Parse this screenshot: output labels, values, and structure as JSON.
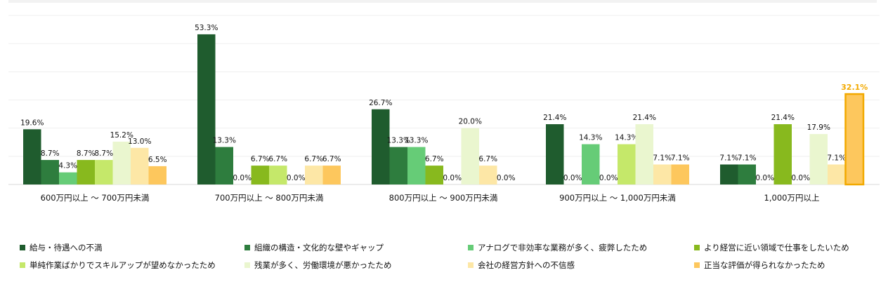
{
  "chart_data": {
    "type": "bar",
    "categories": [
      "600万円以上 ～ 700万円未満",
      "700万円以上 ～ 800万円未満",
      "800万円以上 ～ 900万円未満",
      "900万円以上 ～ 1,000万円未満",
      "1,000万円以上"
    ],
    "series": [
      {
        "name": "給与・待遇への不満",
        "color": "#1f5c2e",
        "values": [
          19.6,
          53.3,
          26.7,
          21.4,
          7.1
        ]
      },
      {
        "name": "組織の構造・文化的な壁やギャップ",
        "color": "#2e7d3e",
        "values": [
          8.7,
          13.3,
          13.3,
          0.0,
          7.1
        ]
      },
      {
        "name": "アナログで非効率な業務が多く、疲弊したため",
        "color": "#66cc77",
        "values": [
          4.3,
          0.0,
          13.3,
          14.3,
          0.0
        ]
      },
      {
        "name": "より経営に近い領域で仕事をしたいため",
        "color": "#88b91e",
        "values": [
          8.7,
          6.7,
          6.7,
          0.0,
          21.4
        ]
      },
      {
        "name": "単純作業ばかりでスキルアップが望めなかったため",
        "color": "#c5e86a",
        "values": [
          8.7,
          6.7,
          0.0,
          14.3,
          0.0
        ]
      },
      {
        "name": "残業が多く、労働環境が悪かったため",
        "color": "#eaf6cf",
        "values": [
          15.2,
          0.0,
          20.0,
          21.4,
          17.9
        ]
      },
      {
        "name": "会社の経営方針への不信感",
        "color": "#fde7a6",
        "values": [
          13.0,
          6.7,
          6.7,
          7.1,
          7.1
        ]
      },
      {
        "name": "正当な評価が得られなかったため",
        "color": "#fdc75d",
        "values": [
          6.5,
          6.7,
          0.0,
          7.1,
          32.1
        ]
      }
    ],
    "value_labels": [
      [
        "19.6%",
        "53.3%",
        "26.7%",
        "21.4%",
        "7.1%"
      ],
      [
        "8.7%",
        "13.3%",
        "13.3%",
        "0.0%",
        "7.1%"
      ],
      [
        "4.3%",
        "0.0%",
        "13.3%",
        "14.3%",
        "0.0%"
      ],
      [
        "8.7%",
        "6.7%",
        "6.7%",
        "0.0%",
        "21.4%"
      ],
      [
        "8.7%",
        "6.7%",
        "0.0%",
        "14.3%",
        "0.0%"
      ],
      [
        "15.2%",
        "0.0%",
        "20.0%",
        "21.4%",
        "17.9%"
      ],
      [
        "13.0%",
        "6.7%",
        "6.7%",
        "7.1%",
        "7.1%"
      ],
      [
        "6.5%",
        "6.7%",
        "0.0%",
        "7.1%",
        "32.1%"
      ]
    ],
    "highlight": {
      "series_index": 7,
      "category_index": 4,
      "color": "#f2a900"
    },
    "ylim": [
      0,
      60
    ],
    "grid": true,
    "legend_position": "bottom",
    "title": "",
    "xlabel": "",
    "ylabel": ""
  }
}
